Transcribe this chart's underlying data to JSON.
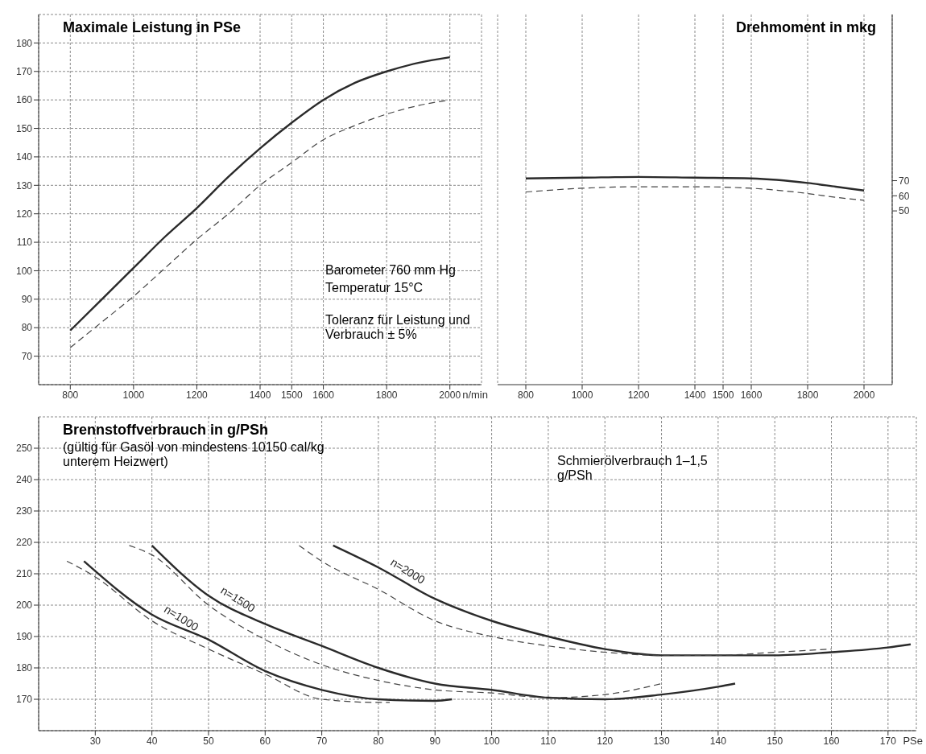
{
  "chart_data": [
    {
      "type": "line",
      "title": "Maximale Leistung in PSe",
      "xlabel": "n/min",
      "xlim": [
        700,
        2100
      ],
      "xticks": [
        800,
        1000,
        1200,
        1400,
        1500,
        1600,
        1800,
        2000
      ],
      "ylim": [
        60,
        190
      ],
      "yticks": [
        70,
        80,
        90,
        100,
        110,
        120,
        130,
        140,
        150,
        160,
        170,
        180
      ],
      "grid": true,
      "annotations": [
        "Barometer 760 mm Hg",
        "Temperatur 15°C",
        "Toleranz für Leistung und Verbrauch ± 5%"
      ],
      "x": [
        800,
        900,
        1000,
        1100,
        1200,
        1300,
        1400,
        1500,
        1600,
        1700,
        1800,
        1900,
        2000
      ],
      "series": [
        {
          "color": "#2a2a2a",
          "line_style": "solid",
          "values": [
            79,
            90,
            101,
            112,
            122,
            133,
            143,
            152,
            160,
            166,
            170,
            173,
            175
          ]
        },
        {
          "color": "#444444",
          "line_style": "dashed",
          "values": [
            73,
            82,
            91,
            101,
            111,
            120,
            130,
            138,
            146,
            151,
            155,
            158,
            160
          ]
        }
      ]
    },
    {
      "type": "line",
      "title": "Drehmoment in mkg",
      "xlim": [
        700,
        2100
      ],
      "xticks": [
        800,
        1000,
        1200,
        1400,
        1500,
        1600,
        1800,
        2000
      ],
      "ylim": [
        -65,
        180
      ],
      "yticks": [
        50,
        60,
        70
      ],
      "grid": "x",
      "x": [
        800,
        1000,
        1200,
        1400,
        1600,
        1800,
        1900,
        2000
      ],
      "series": [
        {
          "color": "#2a2a2a",
          "line_style": "solid",
          "values": [
            71.5,
            72,
            72.5,
            72,
            71.5,
            68.5,
            66,
            63.5
          ]
        },
        {
          "color": "#444444",
          "line_style": "dashed",
          "values": [
            62.5,
            65,
            66,
            66,
            65,
            61.5,
            59,
            57
          ]
        }
      ]
    },
    {
      "type": "line",
      "title": "Brennstoffverbrauch in g/PSh",
      "subtitle": "(gültig für Gasöl von mindestens 10150 cal/kg unterem Heizwert)",
      "xlabel": "PSe",
      "xlim": [
        20,
        175
      ],
      "xticks": [
        30,
        40,
        50,
        60,
        70,
        80,
        90,
        100,
        110,
        120,
        130,
        140,
        150,
        160,
        170
      ],
      "ylim": [
        160,
        260
      ],
      "yticks": [
        170,
        180,
        190,
        200,
        210,
        220,
        230,
        240,
        250
      ],
      "grid": true,
      "annotations": [
        "Schmierölverbrauch 1–1,5 g/PSh"
      ],
      "series": [
        {
          "name": "n=1000",
          "color": "#2a2a2a",
          "line_style": "solid",
          "x": [
            28,
            40,
            50,
            60,
            70,
            80,
            90,
            93
          ],
          "values": [
            214,
            197,
            189,
            179,
            173,
            170,
            169.5,
            170
          ]
        },
        {
          "color": "#444444",
          "line_style": "dashed",
          "x": [
            25,
            30,
            40,
            50,
            60,
            70,
            80,
            82
          ],
          "values": [
            214,
            209,
            195,
            186,
            178,
            170,
            169,
            169
          ]
        },
        {
          "name": "n=1500",
          "color": "#2a2a2a",
          "line_style": "solid",
          "x": [
            40,
            50,
            60,
            70,
            80,
            90,
            100,
            110,
            120,
            130,
            140,
            143
          ],
          "values": [
            219,
            203,
            194,
            187,
            180,
            175,
            173,
            170.5,
            170,
            171.5,
            174,
            175
          ]
        },
        {
          "color": "#444444",
          "line_style": "dashed",
          "x": [
            36,
            40,
            50,
            60,
            70,
            80,
            90,
            100,
            110,
            120,
            130
          ],
          "values": [
            219,
            216,
            200,
            189,
            181,
            176,
            173,
            172,
            170.5,
            171.5,
            175
          ]
        },
        {
          "name": "n=2000",
          "color": "#2a2a2a",
          "line_style": "solid",
          "x": [
            72,
            80,
            90,
            100,
            110,
            120,
            130,
            140,
            150,
            160,
            170,
            174
          ],
          "values": [
            219,
            212,
            202,
            195,
            190,
            186,
            184,
            184,
            184,
            185,
            186.5,
            187.5
          ]
        },
        {
          "color": "#444444",
          "line_style": "dashed",
          "x": [
            66,
            70,
            80,
            90,
            100,
            110,
            120,
            130,
            140,
            150,
            160
          ],
          "values": [
            219,
            214,
            205,
            195,
            190,
            187,
            185,
            184,
            184,
            185,
            186
          ]
        }
      ]
    }
  ]
}
